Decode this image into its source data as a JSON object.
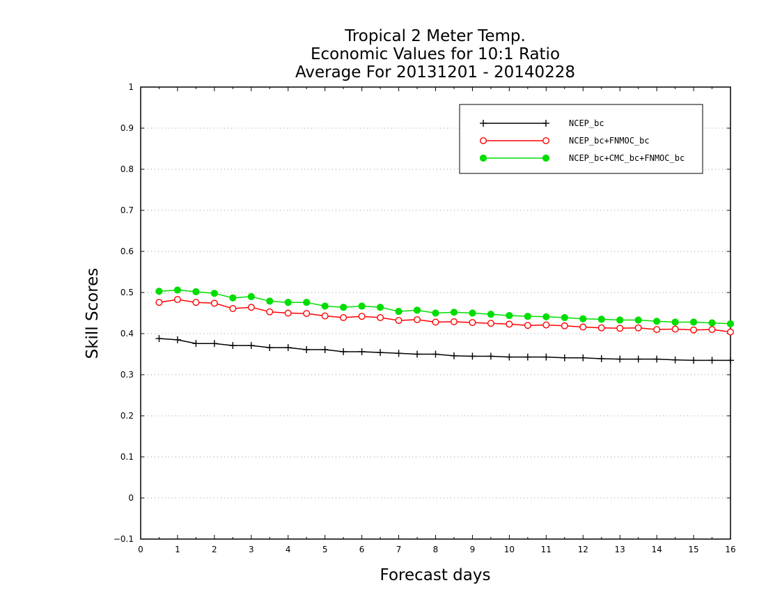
{
  "chart_data": {
    "type": "line",
    "title": [
      "Tropical 2 Meter Temp.",
      "Economic Values for 10:1 Ratio",
      "Average For 20131201 - 20140228"
    ],
    "xlabel": "Forecast days",
    "ylabel": "Skill Scores",
    "xlim": [
      0,
      16
    ],
    "ylim": [
      -0.1,
      1
    ],
    "xticks": [
      "0",
      "1",
      "2",
      "3",
      "4",
      "5",
      "6",
      "7",
      "8",
      "9",
      "10",
      "11",
      "12",
      "13",
      "14",
      "15",
      "16"
    ],
    "yticks": [
      "-0.1",
      "0",
      "0.1",
      "0.2",
      "0.3",
      "0.4",
      "0.5",
      "0.6",
      "0.7",
      "0.8",
      "0.9",
      "1"
    ],
    "grid": "horizontal dotted",
    "legend_position": "top-right",
    "x": [
      0.5,
      1,
      1.5,
      2,
      2.5,
      3,
      3.5,
      4,
      4.5,
      5,
      5.5,
      6,
      6.5,
      7,
      7.5,
      8,
      8.5,
      9,
      9.5,
      10,
      10.5,
      11,
      11.5,
      12,
      12.5,
      13,
      13.5,
      14,
      14.5,
      15,
      15.5,
      16
    ],
    "series": [
      {
        "name": "NCEP_bc",
        "color": "#000000",
        "marker": "plus",
        "values": [
          0.388,
          0.385,
          0.376,
          0.376,
          0.371,
          0.371,
          0.366,
          0.366,
          0.361,
          0.361,
          0.356,
          0.356,
          0.354,
          0.352,
          0.35,
          0.35,
          0.346,
          0.345,
          0.345,
          0.343,
          0.343,
          0.343,
          0.341,
          0.341,
          0.339,
          0.338,
          0.338,
          0.338,
          0.336,
          0.335,
          0.335,
          0.335
        ]
      },
      {
        "name": "NCEP_bc+FNMOC_bc",
        "color": "#ff0000",
        "marker": "open-circle",
        "values": [
          0.476,
          0.483,
          0.476,
          0.474,
          0.461,
          0.464,
          0.453,
          0.45,
          0.449,
          0.443,
          0.439,
          0.442,
          0.439,
          0.432,
          0.434,
          0.428,
          0.429,
          0.427,
          0.425,
          0.423,
          0.42,
          0.421,
          0.419,
          0.416,
          0.414,
          0.413,
          0.414,
          0.41,
          0.411,
          0.409,
          0.41,
          0.404
        ]
      },
      {
        "name": "NCEP_bc+CMC_bc+FNMOC_bc",
        "color": "#00dd00",
        "marker": "filled-circle",
        "values": [
          0.503,
          0.506,
          0.502,
          0.498,
          0.487,
          0.49,
          0.479,
          0.476,
          0.476,
          0.467,
          0.464,
          0.467,
          0.464,
          0.454,
          0.457,
          0.45,
          0.452,
          0.45,
          0.447,
          0.444,
          0.442,
          0.441,
          0.439,
          0.436,
          0.435,
          0.433,
          0.433,
          0.43,
          0.428,
          0.428,
          0.426,
          0.424
        ]
      }
    ]
  }
}
